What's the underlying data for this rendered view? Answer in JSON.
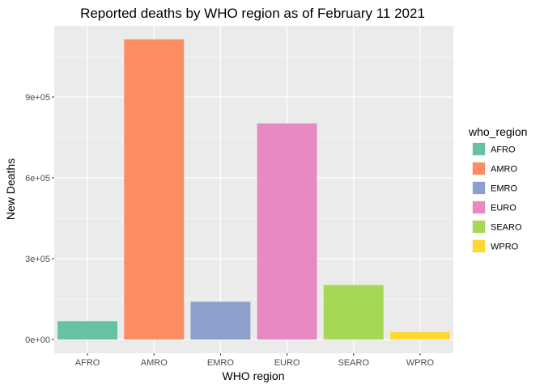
{
  "chart_data": {
    "type": "bar",
    "title": "Reported deaths by WHO region as of February 11 2021",
    "xlabel": "WHO region",
    "ylabel": "New Deaths",
    "categories": [
      "AFRO",
      "AMRO",
      "EMRO",
      "EURO",
      "SEARO",
      "WPRO"
    ],
    "values": [
      68000,
      1114000,
      140000,
      802000,
      202000,
      28000
    ],
    "colors": [
      "#66C2A5",
      "#FC8D62",
      "#8DA0CB",
      "#E78AC3",
      "#A6D854",
      "#FFD92F"
    ],
    "ylim": [
      0,
      1200000
    ],
    "y_ticks": [
      0,
      300000,
      600000,
      900000
    ],
    "y_tick_labels": [
      "0e+00",
      "3e+05",
      "6e+05",
      "9e+05"
    ],
    "grid": true,
    "legend": {
      "title": "who_region",
      "position": "right",
      "entries": [
        "AFRO",
        "AMRO",
        "EMRO",
        "EURO",
        "SEARO",
        "WPRO"
      ]
    }
  }
}
